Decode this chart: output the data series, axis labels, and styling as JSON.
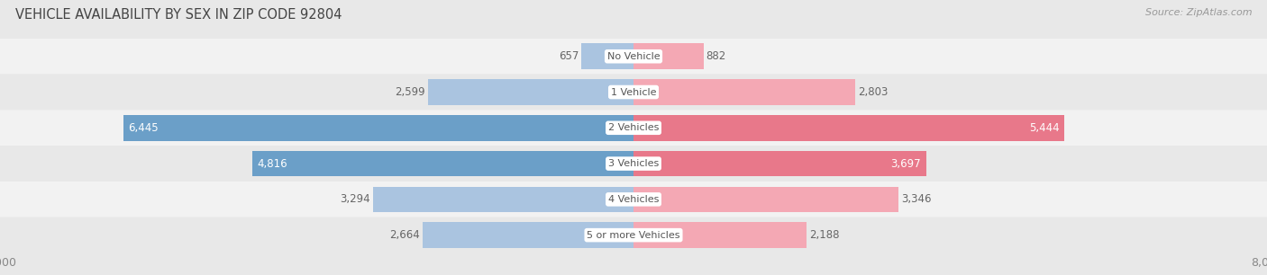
{
  "title": "VEHICLE AVAILABILITY BY SEX IN ZIP CODE 92804",
  "source": "Source: ZipAtlas.com",
  "categories": [
    "No Vehicle",
    "1 Vehicle",
    "2 Vehicles",
    "3 Vehicles",
    "4 Vehicles",
    "5 or more Vehicles"
  ],
  "male_values": [
    657,
    2599,
    6445,
    4816,
    3294,
    2664
  ],
  "female_values": [
    882,
    2803,
    5444,
    3697,
    3346,
    2188
  ],
  "male_color_light": "#aac4e0",
  "male_color_strong": "#6b9fc8",
  "female_color_light": "#f4a8b4",
  "female_color_strong": "#e8788a",
  "x_max": 8000,
  "bar_height": 0.72,
  "background_color": "#e8e8e8",
  "row_bg_even": "#f2f2f2",
  "row_bg_odd": "#e8e8e8",
  "label_color_inside": "#ffffff",
  "label_color_outside": "#666666",
  "title_color": "#444444",
  "source_color": "#999999",
  "axis_label_color": "#888888",
  "legend_male_color": "#7ab0d4",
  "legend_female_color": "#f0909c",
  "threshold": 3500
}
